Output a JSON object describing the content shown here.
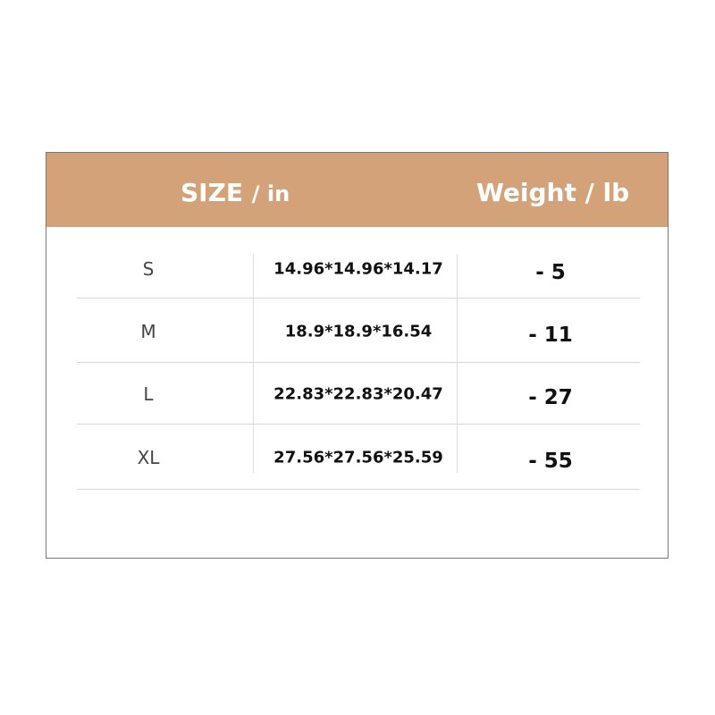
{
  "colors": {
    "header_bg": "#d4a278",
    "header_text": "#ffffff"
  },
  "header": {
    "size_label": "SIZE",
    "size_unit": "/ in",
    "weight_label": "Weight / lb"
  },
  "rows": [
    {
      "size": "S",
      "dimensions": "14.96*14.96*14.17",
      "weight": "- 5"
    },
    {
      "size": "M",
      "dimensions": "18.9*18.9*16.54",
      "weight": "- 11"
    },
    {
      "size": "L",
      "dimensions": "22.83*22.83*20.47",
      "weight": "- 27"
    },
    {
      "size": "XL",
      "dimensions": "27.56*27.56*25.59",
      "weight": "- 55"
    }
  ]
}
